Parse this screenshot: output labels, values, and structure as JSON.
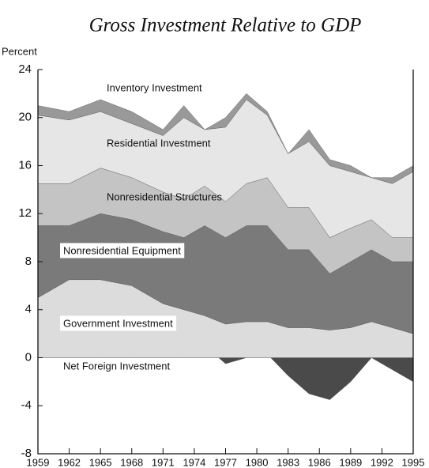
{
  "chart_data": {
    "type": "stacked_area",
    "title": "Gross Investment Relative to GDP",
    "y_label": "Percent",
    "x": [
      1959,
      1962,
      1965,
      1968,
      1971,
      1973,
      1975,
      1977,
      1979,
      1981,
      1983,
      1985,
      1987,
      1989,
      1991,
      1993,
      1995
    ],
    "xlim": [
      1959,
      1995
    ],
    "xticks": [
      1959,
      1962,
      1965,
      1968,
      1971,
      1974,
      1977,
      1980,
      1983,
      1986,
      1989,
      1992,
      1995
    ],
    "ylim": [
      -8,
      24
    ],
    "yticks": [
      -8,
      -4,
      0,
      4,
      8,
      12,
      16,
      20,
      24
    ],
    "series": [
      {
        "name": "Net Foreign Investment",
        "color": "#4a4a4a",
        "values": [
          0.5,
          0.8,
          1,
          0.3,
          0,
          0.5,
          1,
          -0.5,
          0,
          0.3,
          -1.5,
          -3,
          -3.5,
          -2,
          0,
          -1,
          -2
        ]
      },
      {
        "name": "Government Investment",
        "color": "#dcdcdc",
        "values": [
          5,
          6.5,
          6.5,
          6,
          4.5,
          4,
          3.5,
          2.8,
          3,
          3,
          2.5,
          2.5,
          2.3,
          2.5,
          3,
          2.5,
          2
        ]
      },
      {
        "name": "Nonresidential Equipment",
        "color": "#7a7a7a",
        "values": [
          6,
          4.5,
          5.5,
          5.5,
          6,
          6,
          7.5,
          7.2,
          8,
          8,
          6.5,
          6.5,
          4.7,
          5.5,
          6,
          5.5,
          6
        ]
      },
      {
        "name": "Nonresidential Structures",
        "color": "#c4c4c4",
        "values": [
          3.5,
          3.5,
          3.8,
          3.5,
          3.3,
          3.2,
          3.3,
          3,
          3.5,
          4,
          3.5,
          3.5,
          3,
          2.8,
          2.5,
          2,
          2
        ]
      },
      {
        "name": "Residential Investment",
        "color": "#e6e6e6",
        "values": [
          5.7,
          5.3,
          4.7,
          4.5,
          4.7,
          6.8,
          4.7,
          6.2,
          7,
          5.2,
          4.5,
          5.5,
          6,
          4.7,
          3.5,
          4.5,
          5.5
        ]
      },
      {
        "name": "Inventory Investment",
        "color": "#999999",
        "values": [
          0.8,
          0.7,
          1,
          1,
          0.5,
          1,
          0,
          0.8,
          0.5,
          0.3,
          0,
          1,
          0.5,
          0.5,
          0,
          0.5,
          0.5
        ]
      }
    ]
  }
}
